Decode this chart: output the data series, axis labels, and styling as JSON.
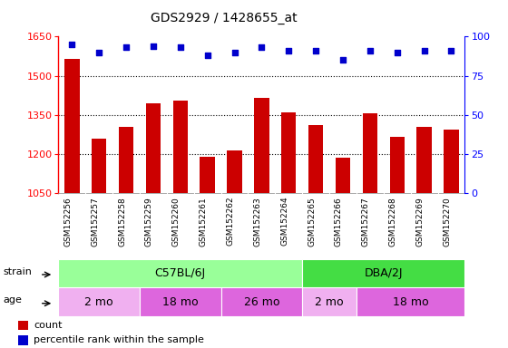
{
  "title": "GDS2929 / 1428655_at",
  "samples": [
    "GSM152256",
    "GSM152257",
    "GSM152258",
    "GSM152259",
    "GSM152260",
    "GSM152261",
    "GSM152262",
    "GSM152263",
    "GSM152264",
    "GSM152265",
    "GSM152266",
    "GSM152267",
    "GSM152268",
    "GSM152269",
    "GSM152270"
  ],
  "counts": [
    1565,
    1260,
    1305,
    1395,
    1405,
    1190,
    1215,
    1415,
    1360,
    1310,
    1185,
    1355,
    1265,
    1305,
    1295
  ],
  "percentiles": [
    95,
    90,
    93,
    94,
    93,
    88,
    90,
    93,
    91,
    91,
    85,
    91,
    90,
    91,
    91
  ],
  "ylim_left": [
    1050,
    1650
  ],
  "ylim_right": [
    0,
    100
  ],
  "yticks_left": [
    1050,
    1200,
    1350,
    1500,
    1650
  ],
  "yticks_right": [
    0,
    25,
    50,
    75,
    100
  ],
  "bar_color": "#cc0000",
  "dot_color": "#0000cc",
  "strain_groups": [
    {
      "label": "C57BL/6J",
      "start": 0,
      "end": 9,
      "color": "#99ff99"
    },
    {
      "label": "DBA/2J",
      "start": 9,
      "end": 15,
      "color": "#44dd44"
    }
  ],
  "age_groups": [
    {
      "label": "2 mo",
      "start": 0,
      "end": 3,
      "color": "#f0b0f0"
    },
    {
      "label": "18 mo",
      "start": 3,
      "end": 6,
      "color": "#dd66dd"
    },
    {
      "label": "26 mo",
      "start": 6,
      "end": 9,
      "color": "#dd66dd"
    },
    {
      "label": "2 mo",
      "start": 9,
      "end": 11,
      "color": "#f0b0f0"
    },
    {
      "label": "18 mo",
      "start": 11,
      "end": 15,
      "color": "#dd66dd"
    }
  ],
  "legend_count_label": "count",
  "legend_pct_label": "percentile rank within the sample",
  "strain_label": "strain",
  "age_label": "age",
  "bg_xlabels": "#cccccc",
  "bg_white": "#ffffff"
}
